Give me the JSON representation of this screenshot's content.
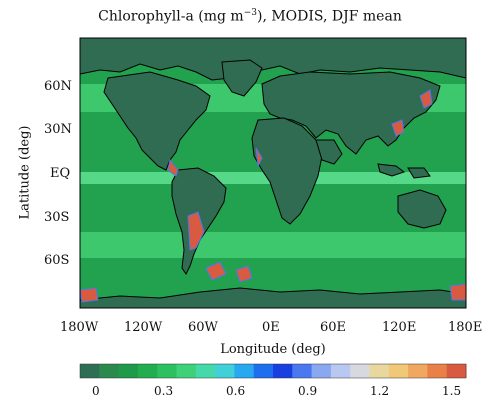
{
  "title_prefix": "Chlorophyll-a (mg m",
  "title_sup": "−3",
  "title_suffix": "), MODIS, DJF mean",
  "x_axis_label": "Longitude (deg)",
  "y_axis_label": "Latitude (deg)",
  "x_ticks": [
    "180W",
    "120W",
    "60W",
    "0E",
    "60E",
    "120E",
    "180E"
  ],
  "y_ticks": [
    "60N",
    "30N",
    "EQ",
    "30S",
    "60S"
  ],
  "colorbar": {
    "tick_labels": [
      "0",
      "0.3",
      "0.6",
      "0.9",
      "1.2",
      "1.5"
    ],
    "range": [
      0,
      1.6
    ],
    "colors": [
      "#2e6e55",
      "#2a8a4e",
      "#1e9a4a",
      "#22ad4e",
      "#2cc060",
      "#3fd07a",
      "#45d8a8",
      "#3fd0d8",
      "#28a8f0",
      "#1e6ef0",
      "#1a3fe0",
      "#4a78f0",
      "#8aa8f0",
      "#b8c8f0",
      "#d8d8e0",
      "#e8d8a0",
      "#f0c878",
      "#f0a860",
      "#e88048",
      "#d85a40"
    ]
  },
  "colors": {
    "land": "#2f6c52",
    "ocean_low": "#22a24e",
    "ocean_mid": "#3ec86e",
    "ocean_high": "#55d888",
    "coast": "#000000"
  }
}
